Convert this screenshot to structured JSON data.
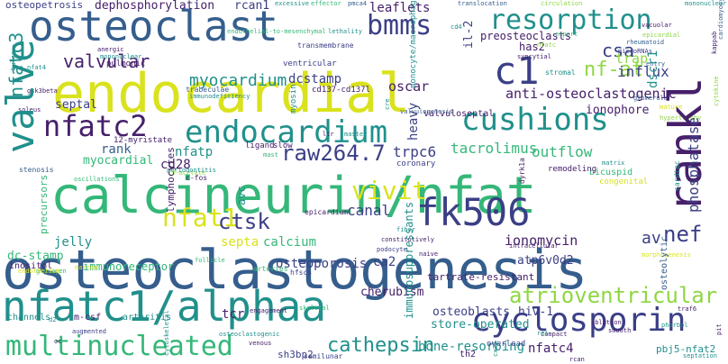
{
  "palette": {
    "purple": "#46206b",
    "indigo": "#3b3f86",
    "blue": "#355e8d",
    "teal": "#21908c",
    "green": "#35b779",
    "lime": "#8fd744",
    "yellow": "#d9e21d"
  },
  "words": [
    {
      "text": "osteoclastogenesis"
    },
    {
      "text": "calcineurin/nfat"
    },
    {
      "text": "nfatc1/alphaa"
    },
    {
      "text": "endocardial"
    },
    {
      "text": "osteoclast"
    },
    {
      "text": "rankl"
    },
    {
      "text": "c1"
    },
    {
      "text": "cyclosporin"
    },
    {
      "text": "multinucleated"
    },
    {
      "text": "resorption"
    },
    {
      "text": "endocardium"
    },
    {
      "text": "cushions"
    },
    {
      "text": "nfatc2"
    },
    {
      "text": "valve"
    },
    {
      "text": "fk506"
    },
    {
      "text": "bmms"
    },
    {
      "text": "atrioventricular"
    },
    {
      "text": "raw264.7"
    },
    {
      "text": "vivit"
    },
    {
      "text": "nfat1"
    },
    {
      "text": "cathepsin"
    },
    {
      "text": "ctsk"
    },
    {
      "text": "nef"
    },
    {
      "text": "av"
    },
    {
      "text": "myocardium"
    },
    {
      "text": "valvular"
    },
    {
      "text": "nfatc3"
    },
    {
      "text": "nf-at"
    },
    {
      "text": "csa"
    },
    {
      "text": "influx"
    },
    {
      "text": "anti-osteoclastogenic"
    },
    {
      "text": "preosteoclasts"
    },
    {
      "text": "dephosphorylation"
    },
    {
      "text": "osteopetrosis"
    },
    {
      "text": "leaflets"
    },
    {
      "text": "rcan1"
    },
    {
      "text": "phosphatase"
    },
    {
      "text": "ionomycin"
    },
    {
      "text": "trap"
    },
    {
      "text": "oscar"
    },
    {
      "text": "dcstamp"
    },
    {
      "text": "tacrolimus"
    },
    {
      "text": "outflow"
    },
    {
      "text": "trpc6"
    },
    {
      "text": "canal"
    },
    {
      "text": "jelly"
    },
    {
      "text": "calcium"
    },
    {
      "text": "septa"
    },
    {
      "text": "osteoporosis"
    },
    {
      "text": "ca2"
    },
    {
      "text": "dc-stamp"
    },
    {
      "text": "immunoreceptor"
    },
    {
      "text": "atp6v0d2"
    },
    {
      "text": "tartrate-resistant"
    },
    {
      "text": "bone-resorbing"
    },
    {
      "text": "nfatc4"
    },
    {
      "text": "osteoblasts"
    },
    {
      "text": "hiv-1"
    },
    {
      "text": "store-operated"
    },
    {
      "text": "cherubism"
    },
    {
      "text": "jurkat"
    },
    {
      "text": "tcr"
    },
    {
      "text": "sh3bp2"
    },
    {
      "text": "semilunar"
    },
    {
      "text": "pbj5-nfat2"
    },
    {
      "text": "rank"
    },
    {
      "text": "myocardial"
    },
    {
      "text": "septal"
    },
    {
      "text": "nfatp"
    },
    {
      "text": "cd28"
    },
    {
      "text": "ionophore"
    },
    {
      "text": "trabeculae"
    },
    {
      "text": "cd137-cd137l"
    },
    {
      "text": "il-2"
    },
    {
      "text": "has2"
    },
    {
      "text": "pulmonic"
    },
    {
      "text": "ventricular"
    },
    {
      "text": "dscr1"
    },
    {
      "text": "kappab"
    },
    {
      "text": "bicuspid"
    },
    {
      "text": "congenital"
    },
    {
      "text": "remodeling"
    },
    {
      "text": "dyrk1a"
    },
    {
      "text": "lymphocytes"
    },
    {
      "text": "immunosuppressants"
    },
    {
      "text": "arthritis"
    },
    {
      "text": "m-csf"
    },
    {
      "text": "osteolytic"
    },
    {
      "text": "precursors"
    },
    {
      "text": "channels"
    },
    {
      "text": "inositol"
    },
    {
      "text": "12-myristate"
    },
    {
      "text": "ligand"
    },
    {
      "text": "slow"
    },
    {
      "text": "coronary"
    },
    {
      "text": "avc"
    },
    {
      "text": "heavy"
    },
    {
      "text": "myosin"
    },
    {
      "text": "monocyte/macrophage"
    },
    {
      "text": "transmembrane"
    },
    {
      "text": "valvuloseptal"
    },
    {
      "text": "valvulogenesis"
    },
    {
      "text": "hypertrophy"
    },
    {
      "text": "cardiac"
    },
    {
      "text": "c-fos"
    },
    {
      "text": "hfscs"
    },
    {
      "text": "arteries"
    },
    {
      "text": "smooth"
    },
    {
      "text": "ablation"
    },
    {
      "text": "rcan"
    },
    {
      "text": "th2"
    },
    {
      "text": "overload"
    },
    {
      "text": "venous"
    },
    {
      "text": "epicardium"
    },
    {
      "text": "engagement"
    },
    {
      "text": "circulation"
    },
    {
      "text": "translocation"
    },
    {
      "text": "effector"
    },
    {
      "text": "excessive"
    },
    {
      "text": "cd4"
    },
    {
      "text": "pmca4"
    },
    {
      "text": "export"
    },
    {
      "text": "vacuolar"
    },
    {
      "text": "microRNAs"
    },
    {
      "text": "rheumatoid"
    },
    {
      "text": "entry"
    },
    {
      "text": "stromal"
    },
    {
      "text": "epicardial"
    },
    {
      "text": "glomerular"
    },
    {
      "text": "cytokine"
    },
    {
      "text": "mature"
    },
    {
      "text": "bulge"
    },
    {
      "text": "naive"
    },
    {
      "text": "constitutively"
    },
    {
      "text": "podocyte"
    },
    {
      "text": "fiber"
    },
    {
      "text": "cardiomyocytes"
    },
    {
      "text": "septation"
    },
    {
      "text": "endothelial-to-mesenchymal"
    },
    {
      "text": "immunodeficiency"
    },
    {
      "text": "cre"
    },
    {
      "text": "lethality"
    },
    {
      "text": "mononuclear"
    },
    {
      "text": "anergic"
    },
    {
      "text": "nfat4"
    },
    {
      "text": "gsk3beta"
    },
    {
      "text": "soleus"
    },
    {
      "text": "stenosis"
    },
    {
      "text": "oscillations"
    },
    {
      "text": "13-acetate"
    },
    {
      "text": "periodontitis"
    },
    {
      "text": "follicle"
    },
    {
      "text": "glycogen"
    },
    {
      "text": "marrow"
    },
    {
      "text": "endothelium"
    },
    {
      "text": "augmented"
    },
    {
      "text": "osteoclastogenic"
    },
    {
      "text": "cytoskeletal"
    },
    {
      "text": "skeletal"
    },
    {
      "text": "compact"
    },
    {
      "text": "cx37"
    },
    {
      "text": "intracellular"
    },
    {
      "text": "matrix"
    },
    {
      "text": "phorbol"
    },
    {
      "text": "traf6"
    },
    {
      "text": "morphogenesis"
    },
    {
      "text": "pit"
    },
    {
      "text": "rel"
    },
    {
      "text": "oc"
    },
    {
      "text": "d2"
    },
    {
      "text": "mast"
    },
    {
      "text": "master"
    },
    {
      "text": "ltr"
    },
    {
      "text": "nfatc"
    },
    {
      "text": "syncytial"
    }
  ]
}
